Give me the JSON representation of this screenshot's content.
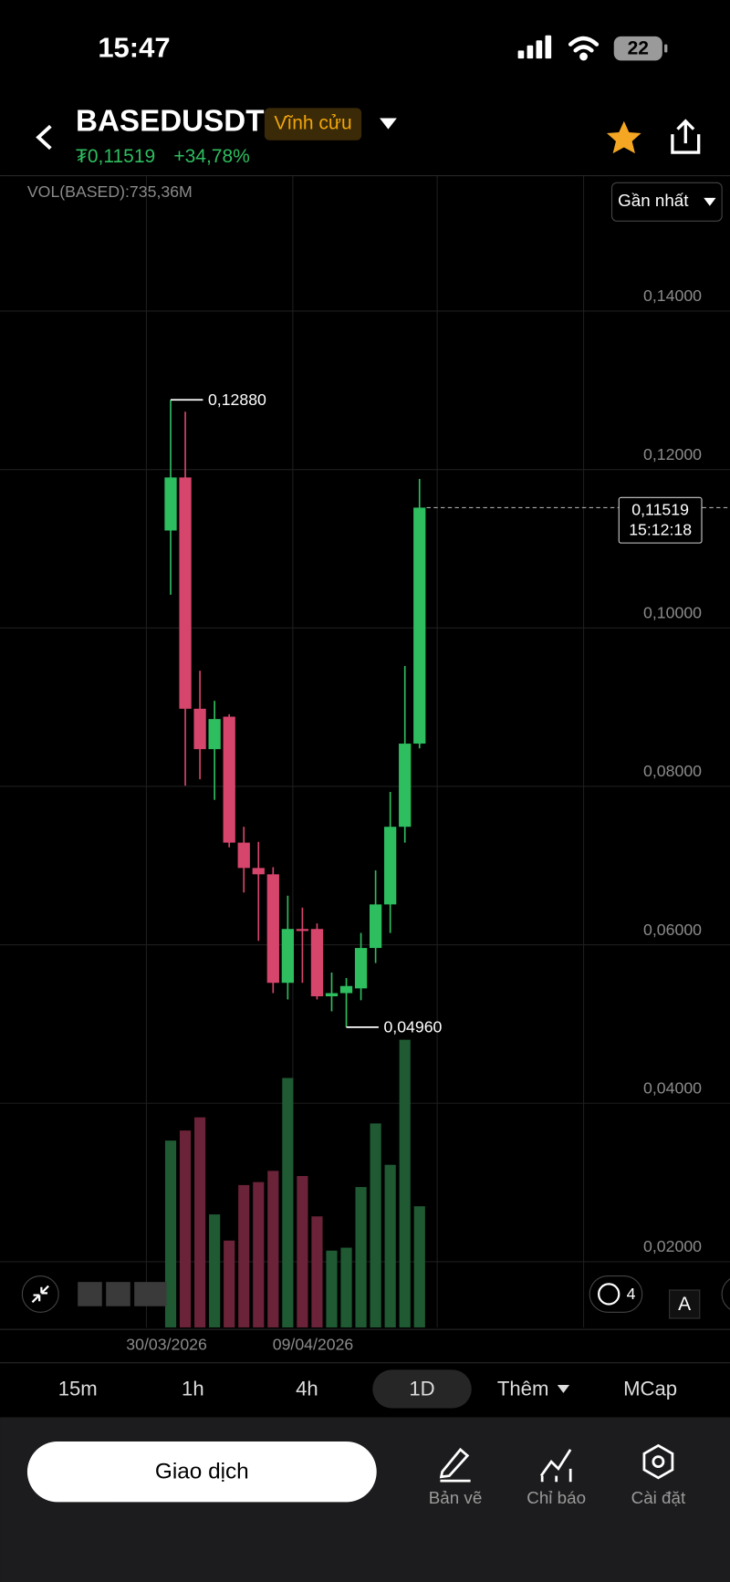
{
  "status_bar": {
    "time": "15:47",
    "battery": "22"
  },
  "header": {
    "symbol": "BASEDUSDT",
    "badge": "Vĩnh cửu",
    "price": "₮0,11519",
    "change": "+34,78%"
  },
  "chart_data": {
    "type": "candlestick",
    "indicator_label": "VOL(BASED):735,36M",
    "range_button": "Gần nhất",
    "x_labels": [
      "30/03/2026",
      "09/04/2026"
    ],
    "open": [
      0.1123,
      0.119,
      0.0898,
      0.0847,
      0.0888,
      0.0729,
      0.0697,
      0.0689,
      0.0552,
      0.062,
      0.062,
      0.0535,
      0.0539,
      0.0545,
      0.0596,
      0.0651,
      0.0749,
      0.0854
    ],
    "high": [
      0.1288,
      0.1273,
      0.0946,
      0.0908,
      0.0891,
      0.0749,
      0.073,
      0.0698,
      0.0662,
      0.0647,
      0.0627,
      0.0565,
      0.0558,
      0.0615,
      0.0694,
      0.0793,
      0.0952,
      0.1188
    ],
    "low": [
      0.1042,
      0.0801,
      0.0809,
      0.0783,
      0.0723,
      0.0666,
      0.0605,
      0.0539,
      0.0531,
      0.0552,
      0.0531,
      0.0516,
      0.0496,
      0.053,
      0.0577,
      0.0615,
      0.0729,
      0.0848
    ],
    "close": [
      0.119,
      0.0898,
      0.0847,
      0.0885,
      0.0729,
      0.0697,
      0.0689,
      0.0552,
      0.062,
      0.0618,
      0.0535,
      0.0539,
      0.0548,
      0.0596,
      0.0651,
      0.0749,
      0.0854,
      0.11519
    ],
    "volume": [
      1134,
      1195,
      1275,
      686,
      527,
      864,
      882,
      950,
      1514,
      919,
      674,
      466,
      484,
      852,
      1238,
      987,
      1746,
      735.36
    ],
    "ylim": [
      0.0117,
      0.1571
    ],
    "yticks": [
      {
        "value": 0.14,
        "label": "0,14000"
      },
      {
        "value": 0.12,
        "label": "0,12000"
      },
      {
        "value": 0.1,
        "label": "0,10000"
      },
      {
        "value": 0.08,
        "label": "0,08000"
      },
      {
        "value": 0.06,
        "label": "0,06000"
      },
      {
        "value": 0.04,
        "label": "0,04000"
      },
      {
        "value": 0.02,
        "label": "0,02000"
      }
    ],
    "grid": true,
    "up_color": "#2ebd5f",
    "down_color": "#d6456b",
    "volume_up_color": "#1f5a33",
    "volume_down_color": "#6a2338",
    "annotations": [
      {
        "value": 0.1288,
        "label": "0,12880"
      },
      {
        "value": 0.0496,
        "label": "0,04960"
      }
    ],
    "last_price": {
      "value": 0.11519,
      "label": "0,11519",
      "time": "15:12:18"
    }
  },
  "overlay": {
    "indicator_count": 4,
    "auto_button": "A"
  },
  "timeframes": [
    "15m",
    "1h",
    "4h",
    "1D",
    "Thêm",
    "MCap"
  ],
  "bottom_bar": {
    "trade_button": "Giao dịch",
    "tools": [
      "Bản vẽ",
      "Chỉ báo",
      "Cài đặt"
    ]
  }
}
